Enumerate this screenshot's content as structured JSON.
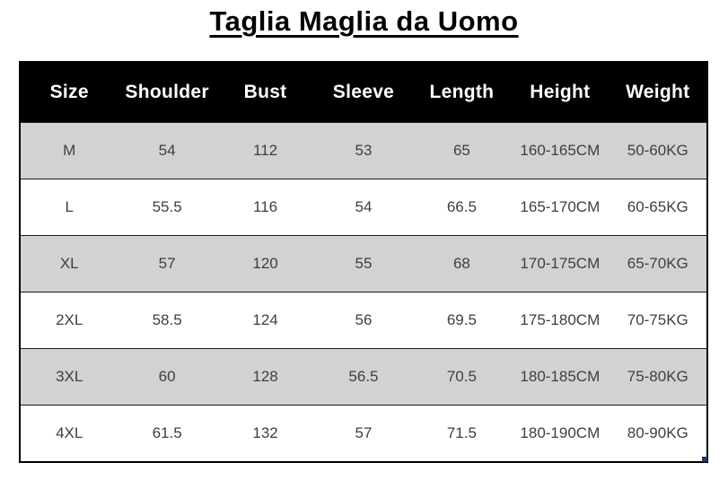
{
  "title": "Taglia Maglia da Uomo",
  "table": {
    "columns": [
      "Size",
      "Shoulder",
      "Bust",
      "Sleeve",
      "Length",
      "Height",
      "Weight"
    ],
    "rows": [
      [
        "M",
        "54",
        "112",
        "53",
        "65",
        "160-165CM",
        "50-60KG"
      ],
      [
        "L",
        "55.5",
        "116",
        "54",
        "66.5",
        "165-170CM",
        "60-65KG"
      ],
      [
        "XL",
        "57",
        "120",
        "55",
        "68",
        "170-175CM",
        "65-70KG"
      ],
      [
        "2XL",
        "58.5",
        "124",
        "56",
        "69.5",
        "175-180CM",
        "70-75KG"
      ],
      [
        "3XL",
        "60",
        "128",
        "56.5",
        "70.5",
        "180-185CM",
        "75-80KG"
      ],
      [
        "4XL",
        "61.5",
        "132",
        "57",
        "71.5",
        "180-190CM",
        "80-90KG"
      ]
    ]
  },
  "colors": {
    "header_bg": "#000000",
    "header_text": "#ffffff",
    "row_shaded_bg": "#d2d2d2",
    "row_plain_bg": "#ffffff",
    "cell_text": "#3f3f3f",
    "table_border": "#000000",
    "corner_handle": "#1f3864"
  }
}
